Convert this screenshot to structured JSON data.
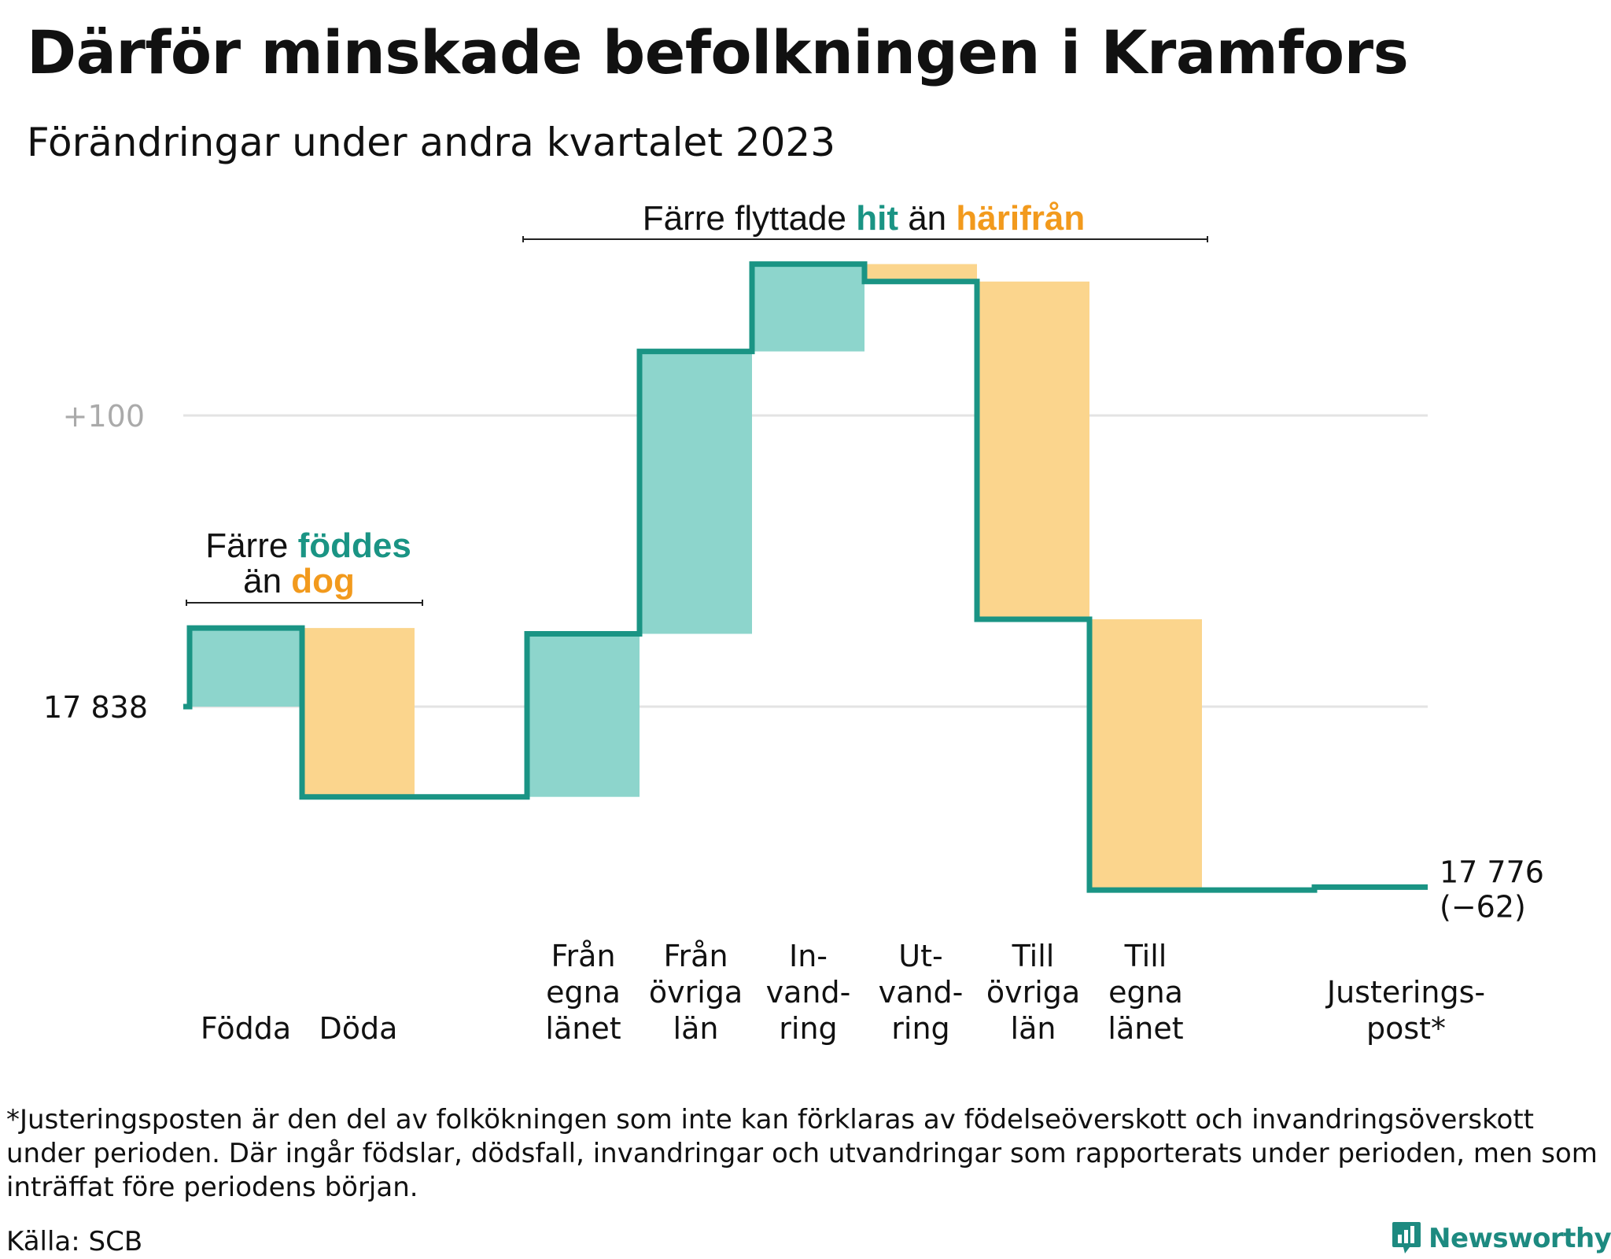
{
  "title": "Därför minskade befolkningen i Kramfors",
  "subtitle": "Förändringar under andra kvartalet 2023",
  "colors": {
    "increase": "#8dd5cc",
    "decrease": "#fbd58d",
    "line": "#1a9484",
    "grid": "#e3e3e3"
  },
  "chart_data": {
    "type": "waterfall",
    "start_value": 17838,
    "start_label": "17  838",
    "end_value": 17776,
    "end_label": "17 776",
    "end_change_label": "(−62)",
    "y_ticks": [
      {
        "value": 17938,
        "label": "+100"
      },
      {
        "value": 17838,
        "label": "17  838"
      }
    ],
    "ylim": [
      17700,
      18040
    ],
    "grid": true,
    "steps": [
      {
        "name": "Födda",
        "label_lines": [
          "Födda"
        ],
        "change": 27
      },
      {
        "name": "Döda",
        "label_lines": [
          "Döda"
        ],
        "change": -58
      },
      {
        "name": "gap",
        "label_lines": [],
        "change": 0
      },
      {
        "name": "Från egna länet",
        "label_lines": [
          "Från",
          "egna",
          "länet"
        ],
        "change": 56
      },
      {
        "name": "Från övriga län",
        "label_lines": [
          "Från",
          "övriga",
          "län"
        ],
        "change": 97
      },
      {
        "name": "Invandring",
        "label_lines": [
          "In-",
          "vand-",
          "ring"
        ],
        "change": 30
      },
      {
        "name": "Utvandring",
        "label_lines": [
          "Ut-",
          "vand-",
          "ring"
        ],
        "change": -6
      },
      {
        "name": "Till övriga län",
        "label_lines": [
          "Till",
          "övriga",
          "län"
        ],
        "change": -116
      },
      {
        "name": "Till egna länet",
        "label_lines": [
          "Till",
          "egna",
          "länet"
        ],
        "change": -93
      },
      {
        "name": "gap",
        "label_lines": [],
        "change": 0
      },
      {
        "name": "Justeringspost*",
        "label_lines": [
          "Justerings-",
          "post*"
        ],
        "change": 1
      }
    ],
    "annotations": [
      {
        "id": "births",
        "parts": [
          {
            "text": "Färre ",
            "style": "plain"
          },
          {
            "text": "föddes",
            "style": "teal"
          },
          {
            "text": "än ",
            "style": "plain"
          },
          {
            "text": "dog",
            "style": "orange"
          }
        ]
      },
      {
        "id": "moves",
        "parts": [
          {
            "text": "Färre flyttade ",
            "style": "plain"
          },
          {
            "text": "hit",
            "style": "teal"
          },
          {
            "text": " än ",
            "style": "plain"
          },
          {
            "text": "härifrån",
            "style": "orange"
          }
        ]
      }
    ]
  },
  "footnote": "*Justeringsposten är den del av folkökningen som inte kan förklaras av födelseöverskott och invandringsöverskott under perioden. Där ingår födslar, dödsfall, invandringar och utvandringar som rapporterats under perioden, men som inträffat före periodens början.",
  "source": "Källa: SCB",
  "brand": {
    "name": "Newsworthy",
    "icon": "bar-chart-icon"
  }
}
